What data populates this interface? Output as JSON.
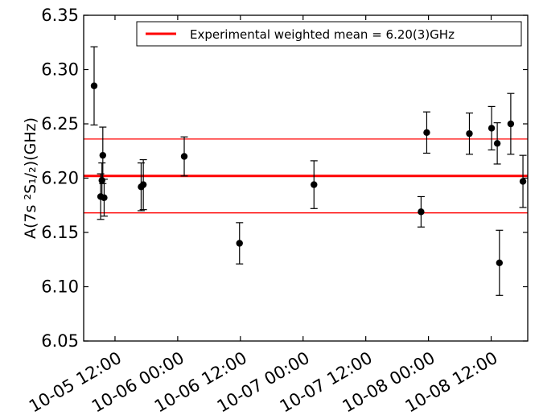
{
  "chart_data": {
    "type": "scatter",
    "ylabel": "A(7s ²S₁/₂)(GHz)",
    "ylim": [
      6.05,
      6.35
    ],
    "yticks": [
      "6.05",
      "6.10",
      "6.15",
      "6.20",
      "6.25",
      "6.30",
      "6.35"
    ],
    "xlim": [
      "2017-10-05 06:00",
      "2017-10-08 19:00"
    ],
    "xticks": [
      {
        "x": "2017-10-05 12:00",
        "label": "10-05 12:00"
      },
      {
        "x": "2017-10-06 00:00",
        "label": "10-06 00:00"
      },
      {
        "x": "2017-10-06 12:00",
        "label": "10-06 12:00"
      },
      {
        "x": "2017-10-07 00:00",
        "label": "10-07 00:00"
      },
      {
        "x": "2017-10-07 12:00",
        "label": "10-07 12:00"
      },
      {
        "x": "2017-10-08 00:00",
        "label": "10-08 00:00"
      },
      {
        "x": "2017-10-08 12:00",
        "label": "10-08 12:00"
      }
    ],
    "grid": false,
    "legend_position": "top-right",
    "legend": [
      {
        "label": "Experimental weighted mean = 6.20(3)GHz",
        "color": "#ff0000"
      }
    ],
    "mean": {
      "value": 6.202,
      "lower": 6.168,
      "upper": 6.236,
      "color": "#ff0000"
    },
    "points": [
      {
        "x": "2017-10-05 08:00",
        "y": 6.285,
        "err": 0.036
      },
      {
        "x": "2017-10-05 09:15",
        "y": 6.183,
        "err": 0.021
      },
      {
        "x": "2017-10-05 09:30",
        "y": 6.198,
        "err": 0.016
      },
      {
        "x": "2017-10-05 09:40",
        "y": 6.221,
        "err": 0.026
      },
      {
        "x": "2017-10-05 09:55",
        "y": 6.182,
        "err": 0.017
      },
      {
        "x": "2017-10-05 17:00",
        "y": 6.192,
        "err": 0.022
      },
      {
        "x": "2017-10-05 17:25",
        "y": 6.194,
        "err": 0.023
      },
      {
        "x": "2017-10-06 01:15",
        "y": 6.22,
        "err": 0.018
      },
      {
        "x": "2017-10-06 11:50",
        "y": 6.14,
        "err": 0.019
      },
      {
        "x": "2017-10-07 02:05",
        "y": 6.194,
        "err": 0.022
      },
      {
        "x": "2017-10-07 22:35",
        "y": 6.169,
        "err": 0.014
      },
      {
        "x": "2017-10-07 23:40",
        "y": 6.242,
        "err": 0.019
      },
      {
        "x": "2017-10-08 07:50",
        "y": 6.241,
        "err": 0.019
      },
      {
        "x": "2017-10-08 12:05",
        "y": 6.246,
        "err": 0.02
      },
      {
        "x": "2017-10-08 13:10",
        "y": 6.232,
        "err": 0.019
      },
      {
        "x": "2017-10-08 13:35",
        "y": 6.122,
        "err": 0.03
      },
      {
        "x": "2017-10-08 15:45",
        "y": 6.25,
        "err": 0.028
      },
      {
        "x": "2017-10-08 18:05",
        "y": 6.197,
        "err": 0.024
      }
    ]
  }
}
